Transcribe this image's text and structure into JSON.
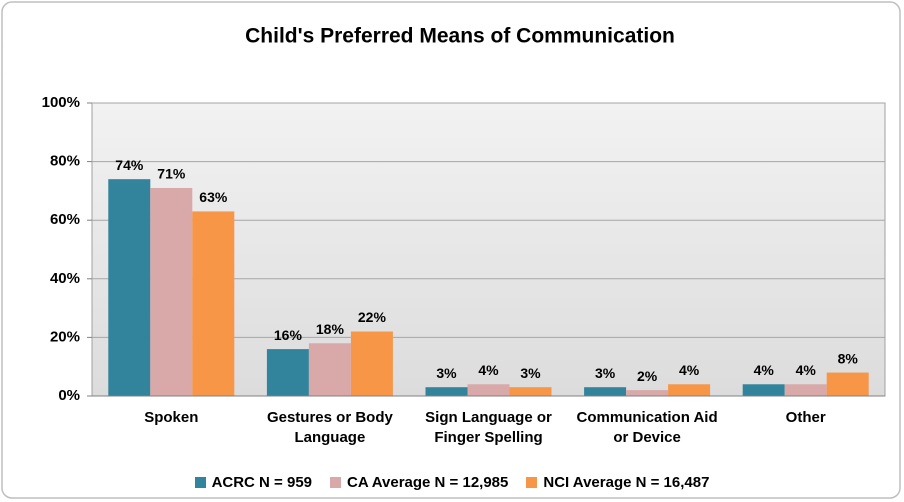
{
  "chart_data": {
    "type": "bar",
    "title": "Child's Preferred Means of Communication",
    "categories": [
      "Spoken",
      "Gestures or Body Language",
      "Sign Language or Finger Spelling",
      "Communication Aid or Device",
      "Other"
    ],
    "series": [
      {
        "name": "ACRC N = 959",
        "color": "#31849b",
        "values": [
          74,
          16,
          3,
          3,
          4
        ],
        "value_labels": [
          "74%",
          "16%",
          "3%",
          "3%",
          "4%"
        ]
      },
      {
        "name": "CA Average N = 12,985",
        "color": "#d9a9a9",
        "values": [
          71,
          18,
          4,
          2,
          4
        ],
        "value_labels": [
          "71%",
          "18%",
          "4%",
          "2%",
          "4%"
        ]
      },
      {
        "name": "NCI Average N = 16,487",
        "color": "#f79646",
        "values": [
          63,
          22,
          3,
          4,
          8
        ],
        "value_labels": [
          "63%",
          "22%",
          "3%",
          "4%",
          "8%"
        ]
      }
    ],
    "ylim": [
      0,
      100
    ],
    "yticks": [
      {
        "value": 0,
        "label": "0%"
      },
      {
        "value": 20,
        "label": "20%"
      },
      {
        "value": 40,
        "label": "40%"
      },
      {
        "value": 60,
        "label": "60%"
      },
      {
        "value": 80,
        "label": "80%"
      },
      {
        "value": 100,
        "label": "100%"
      }
    ],
    "grid": true,
    "legend": "bottom"
  }
}
